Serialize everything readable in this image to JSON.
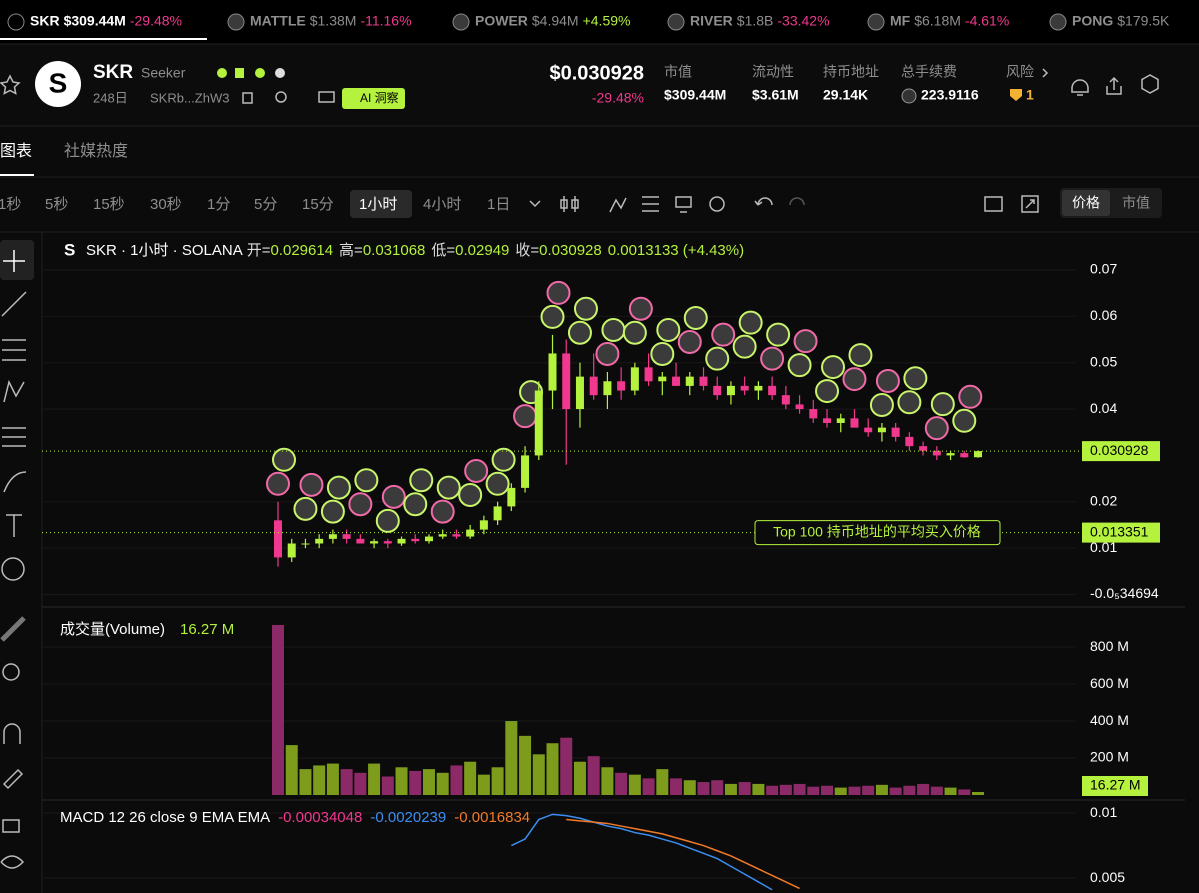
{
  "ticker": [
    {
      "symbol": "SKR",
      "value": "$309.44M",
      "change": "-29.48%"
    },
    {
      "symbol": "MATTLE",
      "value": "$1.38M",
      "change": "-11.16%"
    },
    {
      "symbol": "POWER",
      "value": "$4.94M",
      "change": "+4.59%"
    },
    {
      "symbol": "RIVER",
      "value": "$1.8B",
      "change": "-33.42%"
    },
    {
      "symbol": "MF",
      "value": "$6.18M",
      "change": "-4.61%"
    },
    {
      "symbol": "PONG",
      "value": "$179.5K"
    }
  ],
  "token": {
    "symbol": "SKR",
    "name": "Seeker",
    "age": "248日",
    "address": "SKRb...ZhW3",
    "ai_button": "AI 洞察",
    "price": "$0.030928",
    "change": "-29.48%"
  },
  "stats": [
    {
      "label": "市值",
      "value": "$309.44M"
    },
    {
      "label": "流动性",
      "value": "$3.61M"
    },
    {
      "label": "持币地址",
      "value": "29.14K"
    },
    {
      "label": "总手续费",
      "value": "223.9116"
    },
    {
      "label": "风险",
      "value": "1"
    }
  ],
  "tabs": [
    "图表",
    "社媒热度"
  ],
  "intervals": [
    "1秒",
    "5秒",
    "15秒",
    "30秒",
    "1分",
    "5分",
    "15分",
    "1小时",
    "4小时",
    "1日"
  ],
  "active_interval": 7,
  "view_toggle": [
    "价格",
    "市值"
  ],
  "chart_data": [
    {
      "type": "candlestick",
      "title": "SKR · 1小时 · SOLANA",
      "legend": [
        {
          "label": "开=",
          "value": 0.029614
        },
        {
          "label": "高=",
          "value": 0.031068
        },
        {
          "label": "低=",
          "value": 0.02949
        },
        {
          "label": "收=",
          "value": 0.030928
        }
      ],
      "change": "0.0013133 (+4.43%)",
      "ohlc": [
        [
          0.016,
          0.02,
          0.006,
          0.008
        ],
        [
          0.008,
          0.012,
          0.007,
          0.011
        ],
        [
          0.011,
          0.012,
          0.01,
          0.011
        ],
        [
          0.011,
          0.013,
          0.01,
          0.012
        ],
        [
          0.012,
          0.014,
          0.011,
          0.013
        ],
        [
          0.013,
          0.014,
          0.011,
          0.012
        ],
        [
          0.012,
          0.013,
          0.011,
          0.011
        ],
        [
          0.011,
          0.012,
          0.01,
          0.0115
        ],
        [
          0.0115,
          0.012,
          0.01,
          0.011
        ],
        [
          0.011,
          0.0125,
          0.0105,
          0.012
        ],
        [
          0.012,
          0.013,
          0.011,
          0.0115
        ],
        [
          0.0115,
          0.013,
          0.011,
          0.0125
        ],
        [
          0.0125,
          0.014,
          0.012,
          0.013
        ],
        [
          0.013,
          0.014,
          0.012,
          0.0125
        ],
        [
          0.0125,
          0.015,
          0.012,
          0.014
        ],
        [
          0.014,
          0.017,
          0.013,
          0.016
        ],
        [
          0.016,
          0.02,
          0.015,
          0.019
        ],
        [
          0.019,
          0.024,
          0.018,
          0.023
        ],
        [
          0.023,
          0.032,
          0.022,
          0.03
        ],
        [
          0.03,
          0.046,
          0.029,
          0.044
        ],
        [
          0.044,
          0.056,
          0.04,
          0.052
        ],
        [
          0.052,
          0.055,
          0.028,
          0.04
        ],
        [
          0.04,
          0.05,
          0.036,
          0.047
        ],
        [
          0.047,
          0.052,
          0.042,
          0.043
        ],
        [
          0.043,
          0.048,
          0.04,
          0.046
        ],
        [
          0.046,
          0.049,
          0.042,
          0.044
        ],
        [
          0.044,
          0.05,
          0.043,
          0.049
        ],
        [
          0.049,
          0.052,
          0.045,
          0.046
        ],
        [
          0.046,
          0.048,
          0.043,
          0.047
        ],
        [
          0.047,
          0.05,
          0.045,
          0.045
        ],
        [
          0.045,
          0.048,
          0.043,
          0.047
        ],
        [
          0.047,
          0.049,
          0.044,
          0.045
        ],
        [
          0.045,
          0.047,
          0.042,
          0.043
        ],
        [
          0.043,
          0.046,
          0.041,
          0.045
        ],
        [
          0.045,
          0.047,
          0.043,
          0.044
        ],
        [
          0.044,
          0.046,
          0.042,
          0.045
        ],
        [
          0.045,
          0.047,
          0.042,
          0.043
        ],
        [
          0.043,
          0.045,
          0.04,
          0.041
        ],
        [
          0.041,
          0.043,
          0.039,
          0.04
        ],
        [
          0.04,
          0.042,
          0.037,
          0.038
        ],
        [
          0.038,
          0.04,
          0.036,
          0.037
        ],
        [
          0.037,
          0.039,
          0.035,
          0.038
        ],
        [
          0.038,
          0.04,
          0.036,
          0.036
        ],
        [
          0.036,
          0.038,
          0.034,
          0.035
        ],
        [
          0.035,
          0.037,
          0.033,
          0.036
        ],
        [
          0.036,
          0.037,
          0.033,
          0.034
        ],
        [
          0.034,
          0.035,
          0.031,
          0.032
        ],
        [
          0.032,
          0.033,
          0.03,
          0.031
        ],
        [
          0.031,
          0.032,
          0.029,
          0.03
        ],
        [
          0.03,
          0.031,
          0.029,
          0.0305
        ],
        [
          0.0305,
          0.031,
          0.0295,
          0.0296
        ],
        [
          0.029614,
          0.031068,
          0.02949,
          0.030928
        ]
      ],
      "colors": {
        "up": "#b5f23d",
        "down": "#f0388e"
      },
      "ylim": [
        -0.0027,
        0.0782
      ],
      "yticks": [
        0.01,
        0.02,
        0.04,
        0.05,
        0.06,
        0.07,
        {
          "value": -3.4694e-06,
          "label": "-0.0₅34694"
        }
      ],
      "price_line": 0.030928,
      "avg_buy_line": 0.013351,
      "avg_buy_annotation": "Top 100 持币地址的平均买入价格"
    },
    {
      "type": "bar",
      "title": "成交量(Volume)",
      "values": [
        920,
        270,
        140,
        160,
        170,
        140,
        120,
        170,
        100,
        150,
        130,
        140,
        120,
        160,
        180,
        110,
        150,
        400,
        320,
        220,
        280,
        310,
        180,
        210,
        150,
        120,
        110,
        90,
        140,
        90,
        80,
        70,
        80,
        60,
        70,
        60,
        50,
        55,
        60,
        45,
        50,
        40,
        45,
        50,
        55,
        40,
        50,
        60,
        45,
        40,
        30,
        16.27
      ],
      "last_label": "16.27 M",
      "colors": {
        "up": "#7d9c1c",
        "down": "#8c2a68"
      },
      "ylim": [
        0,
        990
      ],
      "yticks": [
        {
          "value": 200,
          "label": "200 M"
        },
        {
          "value": 400,
          "label": "400 M"
        },
        {
          "value": 600,
          "label": "600 M"
        },
        {
          "value": 800,
          "label": "800 M"
        }
      ]
    },
    {
      "type": "line",
      "title": "MACD 12 26 close 9 EMA EMA",
      "legend": [
        {
          "value": -0.00034048,
          "color": "#f0388e"
        },
        {
          "value": -0.0020239,
          "color": "#3b8ef0"
        },
        {
          "value": -0.0016834,
          "color": "#f07a2a"
        }
      ],
      "series": [
        {
          "color": "#3b8ef0",
          "values": [
            null,
            null,
            null,
            null,
            null,
            null,
            null,
            null,
            null,
            null,
            null,
            null,
            null,
            null,
            null,
            null,
            null,
            0.0075,
            0.008,
            0.0095,
            0.0099,
            0.0098,
            0.0096,
            0.0093,
            0.009,
            0.0088,
            0.0085,
            0.0083,
            0.008,
            0.0077,
            0.0073,
            0.0069,
            0.0065,
            0.0059,
            0.0053,
            0.0047,
            0.0041,
            null,
            null,
            null,
            null,
            null,
            null,
            null,
            null,
            null,
            null,
            null,
            null,
            null,
            null,
            null
          ]
        },
        {
          "color": "#f07a2a",
          "values": [
            null,
            null,
            null,
            null,
            null,
            null,
            null,
            null,
            null,
            null,
            null,
            null,
            null,
            null,
            null,
            null,
            null,
            null,
            null,
            null,
            null,
            0.0095,
            0.0094,
            0.0093,
            0.0092,
            0.009,
            0.0088,
            0.0086,
            0.0084,
            0.0081,
            0.0078,
            0.0075,
            0.0071,
            0.0067,
            0.0062,
            0.0057,
            0.0052,
            0.0047,
            0.0042,
            null,
            null,
            null,
            null,
            null,
            null,
            null,
            null,
            null,
            null,
            null,
            null,
            null
          ]
        }
      ],
      "ylim": [
        0.00385,
        0.01085
      ],
      "yticks": [
        0.005,
        0.01
      ]
    }
  ]
}
